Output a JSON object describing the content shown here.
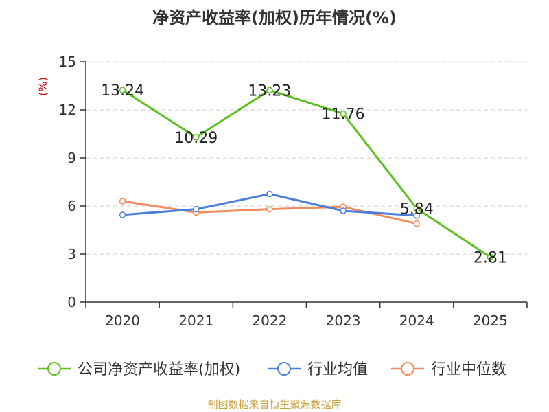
{
  "chart_data": {
    "type": "line",
    "title": "净资产收益率(加权)历年情况(%)",
    "ylabel": "(%)",
    "xlabel": "",
    "ylim": [
      0,
      15
    ],
    "yticks": [
      0,
      3,
      6,
      9,
      12,
      15
    ],
    "categories": [
      "2020",
      "2021",
      "2022",
      "2023",
      "2024",
      "2025"
    ],
    "series": [
      {
        "name": "公司净资产收益率(加权)",
        "color": "#5cc021",
        "values": [
          13.24,
          10.29,
          13.23,
          11.76,
          5.84,
          2.81
        ],
        "labels": [
          "13.24",
          "10.29",
          "13.23",
          "11.76",
          "5.84",
          "2.81"
        ]
      },
      {
        "name": "行业均值",
        "color": "#4a7fd9",
        "values": [
          5.45,
          5.8,
          6.75,
          5.7,
          5.4,
          null
        ]
      },
      {
        "name": "行业中位数",
        "color": "#f48a5c",
        "values": [
          6.3,
          5.6,
          5.8,
          5.95,
          4.9,
          null
        ]
      }
    ],
    "grid": true,
    "legend": "bottom"
  },
  "source": "制图数据来自恒生聚源数据库"
}
